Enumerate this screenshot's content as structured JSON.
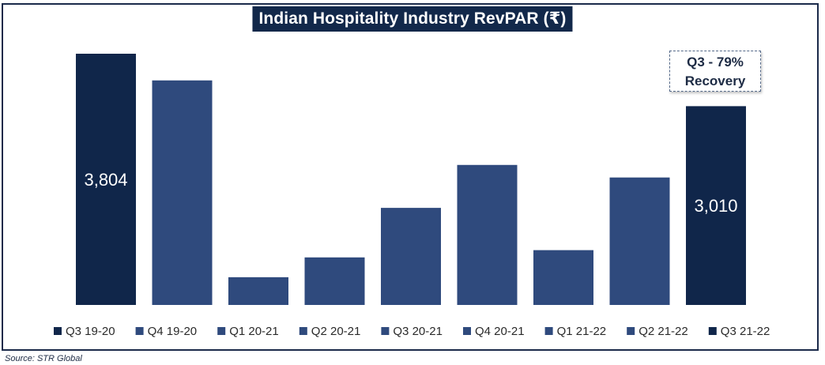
{
  "chart_data": {
    "type": "bar",
    "title": "Indian Hospitality Industry RevPAR (₹)",
    "categories": [
      "Q3 19-20",
      "Q4 19-20",
      "Q1 20-21",
      "Q2 20-21",
      "Q3 20-21",
      "Q4 20-21",
      "Q1 21-22",
      "Q2 21-22",
      "Q3 21-22"
    ],
    "values": [
      3804,
      3400,
      420,
      720,
      1470,
      2120,
      830,
      1930,
      3010
    ],
    "value_labels": [
      "3,804",
      "",
      "",
      "",
      "",
      "",
      "",
      "",
      "3,010"
    ],
    "colors": [
      "#10264a",
      "#2f4a7d",
      "#2f4a7d",
      "#2f4a7d",
      "#2f4a7d",
      "#2f4a7d",
      "#2f4a7d",
      "#2f4a7d",
      "#10264a"
    ],
    "ylim": [
      0,
      3804
    ],
    "xlabel": "",
    "ylabel": "",
    "grid": false,
    "legend_position": "bottom",
    "annotation": {
      "line1": "Q3 - 79%",
      "line2": "Recovery"
    }
  },
  "source": "Source: STR Global"
}
